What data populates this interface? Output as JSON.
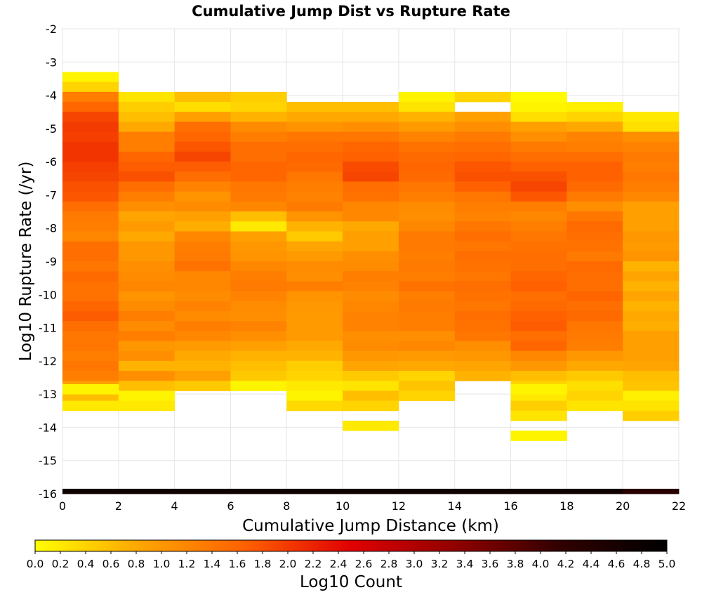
{
  "chart_data": {
    "type": "heatmap",
    "title": "Cumulative Jump Dist vs Rupture Rate",
    "xlabel": "Cumulative Jump Distance (km)",
    "ylabel": "Log10 Rupture Rate (/yr)",
    "colorbar_label": "Log10 Count",
    "xlim": [
      0,
      22
    ],
    "ylim": [
      -16,
      -2
    ],
    "x_ticks": [
      0,
      2,
      4,
      6,
      8,
      10,
      12,
      14,
      16,
      18,
      20,
      22
    ],
    "y_ticks": [
      -2,
      -3,
      -4,
      -5,
      -6,
      -7,
      -8,
      -9,
      -10,
      -11,
      -12,
      -13,
      -14,
      -15,
      -16
    ],
    "colorbar_ticks": [
      "0.0",
      "0.2",
      "0.4",
      "0.6",
      "0.8",
      "1.0",
      "1.2",
      "1.4",
      "1.6",
      "1.8",
      "2.0",
      "2.2",
      "2.4",
      "2.6",
      "2.8",
      "3.0",
      "3.2",
      "3.4",
      "3.6",
      "3.8",
      "4.0",
      "4.2",
      "4.4",
      "4.6",
      "4.8",
      "5.0"
    ],
    "color_range": [
      0,
      5
    ],
    "colormap_stops": [
      "#ffff00",
      "#ffa500",
      "#ff6000",
      "#e00000",
      "#900000",
      "#300000",
      "#000000"
    ],
    "grid": true,
    "x_bin_width": 2,
    "y_bin_height": 0.3,
    "columns": [
      {
        "x_start": 0,
        "y_top": -3.3,
        "values": [
          0.1,
          0.4,
          1.3,
          1.6,
          1.9,
          2.0,
          1.95,
          2.05,
          2.05,
          1.95,
          1.9,
          1.8,
          1.75,
          1.5,
          1.35,
          1.3,
          1.2,
          1.5,
          1.5,
          1.4,
          1.55,
          1.45,
          1.45,
          1.6,
          1.7,
          1.5,
          1.4,
          1.4,
          1.3,
          1.4,
          1.3,
          0.9,
          0.6,
          0.2
        ]
      },
      {
        "x_start": 2,
        "y_top": -3.9,
        "values": [
          0.25,
          0.45,
          0.6,
          0.8,
          1.3,
          1.3,
          1.6,
          1.7,
          1.8,
          1.5,
          1.3,
          1.1,
          0.85,
          0.95,
          0.8,
          1.0,
          1.0,
          1.1,
          1.15,
          1.2,
          1.05,
          1.15,
          1.3,
          1.15,
          1.3,
          1.0,
          1.1,
          0.7,
          1.1,
          0.6,
          0.1,
          0.2
        ]
      },
      {
        "x_start": 4,
        "y_top": -3.9,
        "values": [
          0.6,
          0.3,
          0.9,
          1.5,
          1.6,
          1.75,
          1.9,
          1.7,
          1.5,
          1.25,
          1.05,
          1.15,
          0.9,
          0.75,
          1.2,
          1.3,
          1.35,
          1.45,
          1.2,
          1.2,
          1.15,
          1.25,
          1.15,
          1.3,
          1.2,
          0.95,
          0.8,
          0.7,
          0.9,
          0.5
        ]
      },
      {
        "x_start": 6,
        "y_top": -3.9,
        "values": [
          0.45,
          0.4,
          0.7,
          1.15,
          1.3,
          1.5,
          1.5,
          1.6,
          1.6,
          1.4,
          1.35,
          1.2,
          0.6,
          0.2,
          0.9,
          1.0,
          1.05,
          1.2,
          1.3,
          1.35,
          1.25,
          1.15,
          1.1,
          1.25,
          1.1,
          0.9,
          0.7,
          0.6,
          0.5,
          0.1
        ]
      },
      {
        "x_start": 8,
        "y_top": -4.2,
        "values": [
          0.6,
          0.8,
          1.05,
          1.4,
          1.5,
          1.6,
          1.55,
          1.4,
          1.3,
          1.25,
          1.35,
          1.05,
          0.7,
          0.5,
          0.85,
          0.95,
          1.15,
          1.1,
          1.3,
          1.05,
          1.0,
          0.95,
          0.95,
          0.95,
          0.8,
          0.7,
          0.45,
          0.4,
          0.2,
          0.1,
          0.35
        ]
      },
      {
        "x_start": 10,
        "y_top": -4.2,
        "values": [
          0.6,
          0.8,
          1.1,
          1.4,
          1.6,
          1.65,
          1.85,
          1.9,
          1.5,
          1.45,
          1.2,
          1.2,
          0.8,
          0.9,
          0.9,
          1.1,
          1.15,
          1.3,
          1.25,
          1.15,
          1.2,
          1.25,
          1.25,
          1.1,
          1.15,
          1.0,
          0.85,
          0.5,
          0.25,
          0.6,
          0.4,
          null,
          0.2
        ]
      },
      {
        "x_start": 12,
        "y_top": -3.9,
        "values": [
          0.1,
          0.25,
          0.7,
          0.95,
          1.25,
          1.45,
          1.55,
          1.6,
          1.55,
          1.4,
          1.3,
          1.15,
          1.1,
          1.2,
          1.35,
          1.35,
          1.3,
          1.35,
          1.3,
          1.45,
          1.3,
          1.35,
          1.3,
          1.3,
          1.1,
          1.2,
          0.95,
          0.8,
          0.4,
          0.55,
          0.4
        ]
      },
      {
        "x_start": 14,
        "y_top": -3.9,
        "values": [
          0.4,
          null,
          0.9,
          1.1,
          1.35,
          1.5,
          1.6,
          1.75,
          1.8,
          1.65,
          1.4,
          1.3,
          1.25,
          1.4,
          1.5,
          1.4,
          1.5,
          1.45,
          1.4,
          1.5,
          1.45,
          1.4,
          1.5,
          1.45,
          1.4,
          1.1,
          1.0,
          0.85,
          0.7
        ]
      },
      {
        "x_start": 16,
        "y_top": -3.9,
        "values": [
          0.05,
          0.1,
          0.3,
          0.9,
          1.1,
          1.35,
          1.5,
          1.65,
          1.8,
          1.9,
          1.75,
          1.3,
          1.2,
          1.3,
          1.4,
          1.45,
          1.5,
          1.5,
          1.6,
          1.65,
          1.5,
          1.55,
          1.65,
          1.7,
          1.5,
          1.6,
          1.2,
          1.0,
          0.6,
          0.4,
          0.2,
          0.45,
          0.25,
          null,
          0.1
        ]
      },
      {
        "x_start": 18,
        "y_top": -4.2,
        "values": [
          0.15,
          0.4,
          0.8,
          1.25,
          1.3,
          1.5,
          1.65,
          1.65,
          1.55,
          1.35,
          1.1,
          1.4,
          1.55,
          1.5,
          1.45,
          1.35,
          1.55,
          1.5,
          1.5,
          1.6,
          1.5,
          1.55,
          1.4,
          1.35,
          1.3,
          1.0,
          0.8,
          0.5,
          0.3,
          0.4,
          0.25
        ]
      },
      {
        "x_start": 20,
        "y_top": -4.5,
        "values": [
          0.2,
          0.3,
          1.1,
          1.25,
          1.35,
          1.3,
          1.4,
          1.3,
          1.2,
          0.9,
          0.9,
          0.9,
          1.0,
          0.95,
          1.05,
          0.7,
          0.85,
          0.7,
          0.85,
          0.7,
          0.8,
          0.75,
          0.9,
          0.9,
          0.9,
          0.85,
          0.6,
          0.55,
          0.15,
          0.25,
          0.45
        ]
      }
    ],
    "extra_cells": [
      {
        "x_start": 0,
        "y_top": -12.7,
        "value": 0.1
      },
      {
        "x_start": 16,
        "y_top": -12.7,
        "value": 0.1
      },
      {
        "x_start": 16,
        "y_top": -14.1,
        "value": 0.1
      }
    ],
    "bottom_band": {
      "y_top": -15.85,
      "y_bottom": -16,
      "values": [
        4.7,
        4.7,
        4.7,
        4.7,
        4.7,
        4.7,
        4.7,
        4.7,
        4.7,
        4.7,
        4.3
      ]
    }
  }
}
